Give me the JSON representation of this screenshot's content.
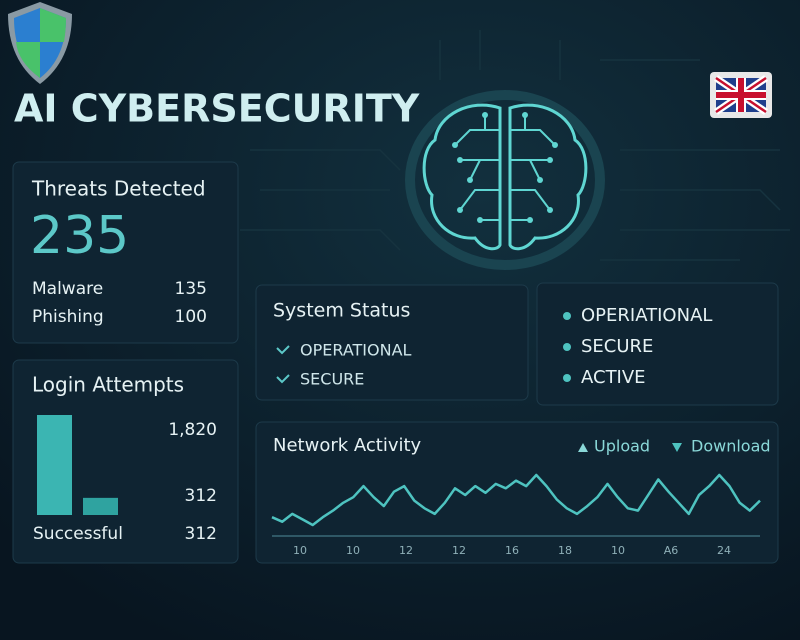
{
  "header": {
    "title": "AI CYBERSECURITY"
  },
  "threats": {
    "title": "Threats Detected",
    "total": "235",
    "rows": [
      {
        "label": "Malware",
        "value": "135"
      },
      {
        "label": "Phishing",
        "value": "100"
      }
    ]
  },
  "login": {
    "title": "Login Attempts",
    "bars": [
      {
        "value": 1820,
        "label": "1,820"
      },
      {
        "value": 312,
        "label": "312"
      }
    ],
    "footer": {
      "label": "Successful",
      "value": "312"
    }
  },
  "status": {
    "title": "System Status",
    "items": [
      "OPERATIONAL",
      "SECURE"
    ]
  },
  "indicators": {
    "items": [
      "OPERIATIONAL",
      "SECURE",
      "ACTIVE"
    ]
  },
  "network": {
    "title": "Network Activity",
    "legend": [
      "Upload",
      "Download"
    ],
    "color": "#4ec3c0",
    "x_labels": [
      "10",
      "10",
      "12",
      "12",
      "16",
      "18",
      "10",
      "A6",
      "24"
    ],
    "values": [
      12,
      8,
      15,
      10,
      5,
      12,
      18,
      25,
      30,
      40,
      30,
      22,
      35,
      40,
      27,
      20,
      15,
      25,
      38,
      32,
      40,
      34,
      42,
      38,
      45,
      40,
      50,
      40,
      28,
      20,
      15,
      22,
      30,
      42,
      30,
      20,
      18,
      32,
      46,
      35,
      25,
      15,
      32,
      40,
      50,
      40,
      25,
      18,
      27
    ]
  }
}
